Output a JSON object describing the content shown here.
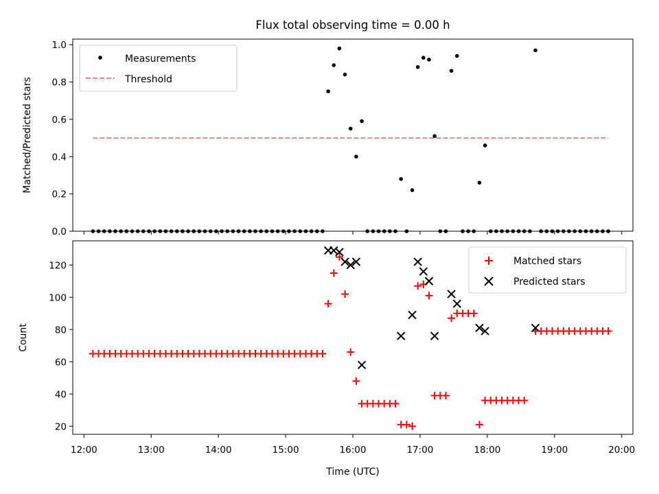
{
  "chart_data": [
    {
      "type": "scatter",
      "title": "Flux total observing time = 0.00 h",
      "xlabel": "",
      "ylabel": "Matched/Predicted stars",
      "ylim": [
        0,
        1.03
      ],
      "yticks": [
        "0.0",
        "0.2",
        "0.4",
        "0.6",
        "0.8",
        "1.0"
      ],
      "legend_position": "top-left",
      "series": [
        {
          "name": "Measurements",
          "marker": "dot",
          "color": "#000000",
          "points": [
            [
              "12:08",
              0
            ],
            [
              "12:13",
              0
            ],
            [
              "12:18",
              0
            ],
            [
              "12:23",
              0
            ],
            [
              "12:28",
              0
            ],
            [
              "12:33",
              0
            ],
            [
              "12:38",
              0
            ],
            [
              "12:43",
              0
            ],
            [
              "12:48",
              0
            ],
            [
              "12:53",
              0
            ],
            [
              "12:58",
              0
            ],
            [
              "13:03",
              0
            ],
            [
              "13:08",
              0
            ],
            [
              "13:13",
              0
            ],
            [
              "13:18",
              0
            ],
            [
              "13:23",
              0
            ],
            [
              "13:28",
              0
            ],
            [
              "13:33",
              0
            ],
            [
              "13:38",
              0
            ],
            [
              "13:43",
              0
            ],
            [
              "13:48",
              0
            ],
            [
              "13:53",
              0
            ],
            [
              "13:58",
              0
            ],
            [
              "14:03",
              0
            ],
            [
              "14:08",
              0
            ],
            [
              "14:13",
              0
            ],
            [
              "14:18",
              0
            ],
            [
              "14:23",
              0
            ],
            [
              "14:28",
              0
            ],
            [
              "14:33",
              0
            ],
            [
              "14:38",
              0
            ],
            [
              "14:43",
              0
            ],
            [
              "14:48",
              0
            ],
            [
              "14:53",
              0
            ],
            [
              "14:58",
              0
            ],
            [
              "15:03",
              0
            ],
            [
              "15:08",
              0
            ],
            [
              "15:13",
              0
            ],
            [
              "15:18",
              0
            ],
            [
              "15:23",
              0
            ],
            [
              "15:28",
              0
            ],
            [
              "15:33",
              0
            ],
            [
              "15:38",
              0.75
            ],
            [
              "15:43",
              0.89
            ],
            [
              "15:48",
              0.98
            ],
            [
              "15:53",
              0.84
            ],
            [
              "15:58",
              0.55
            ],
            [
              "16:03",
              0.4
            ],
            [
              "16:08",
              0.59
            ],
            [
              "16:13",
              0
            ],
            [
              "16:18",
              0
            ],
            [
              "16:23",
              0
            ],
            [
              "16:28",
              0
            ],
            [
              "16:33",
              0
            ],
            [
              "16:38",
              0
            ],
            [
              "16:43",
              0.28
            ],
            [
              "16:48",
              0
            ],
            [
              "16:53",
              0.22
            ],
            [
              "16:58",
              0.88
            ],
            [
              "17:03",
              0.93
            ],
            [
              "17:08",
              0.92
            ],
            [
              "17:13",
              0.51
            ],
            [
              "17:18",
              0
            ],
            [
              "17:23",
              0
            ],
            [
              "17:28",
              0.86
            ],
            [
              "17:33",
              0.94
            ],
            [
              "17:38",
              0
            ],
            [
              "17:43",
              0
            ],
            [
              "17:48",
              0
            ],
            [
              "17:53",
              0.26
            ],
            [
              "17:58",
              0.46
            ],
            [
              "18:03",
              0
            ],
            [
              "18:08",
              0
            ],
            [
              "18:13",
              0
            ],
            [
              "18:18",
              0
            ],
            [
              "18:23",
              0
            ],
            [
              "18:28",
              0
            ],
            [
              "18:33",
              0
            ],
            [
              "18:38",
              0
            ],
            [
              "18:43",
              0.97
            ],
            [
              "18:48",
              0
            ],
            [
              "18:53",
              0
            ],
            [
              "18:58",
              0
            ],
            [
              "19:03",
              0
            ],
            [
              "19:08",
              0
            ],
            [
              "19:13",
              0
            ],
            [
              "19:18",
              0
            ],
            [
              "19:23",
              0
            ],
            [
              "19:28",
              0
            ],
            [
              "19:33",
              0
            ],
            [
              "19:38",
              0
            ],
            [
              "19:43",
              0
            ],
            [
              "19:48",
              0
            ]
          ]
        },
        {
          "name": "Threshold",
          "line": "dashed",
          "color": "#ff7f7f",
          "points": [
            [
              "12:08",
              0.5
            ],
            [
              "19:48",
              0.5
            ]
          ]
        }
      ]
    },
    {
      "type": "scatter",
      "title": "",
      "xlabel": "Time (UTC)",
      "ylabel": "Count",
      "ylim": [
        15,
        135
      ],
      "yticks": [
        "20",
        "40",
        "60",
        "80",
        "100",
        "120"
      ],
      "xlim": [
        "11:50",
        "20:10"
      ],
      "xticks": [
        "12:00",
        "13:00",
        "14:00",
        "15:00",
        "16:00",
        "17:00",
        "18:00",
        "19:00",
        "20:00"
      ],
      "legend_position": "top-right",
      "series": [
        {
          "name": "Matched stars",
          "marker": "plus",
          "color": "#ff0000",
          "points": [
            [
              "12:08",
              65
            ],
            [
              "12:13",
              65
            ],
            [
              "12:18",
              65
            ],
            [
              "12:23",
              65
            ],
            [
              "12:28",
              65
            ],
            [
              "12:33",
              65
            ],
            [
              "12:38",
              65
            ],
            [
              "12:43",
              65
            ],
            [
              "12:48",
              65
            ],
            [
              "12:53",
              65
            ],
            [
              "12:58",
              65
            ],
            [
              "13:03",
              65
            ],
            [
              "13:08",
              65
            ],
            [
              "13:13",
              65
            ],
            [
              "13:18",
              65
            ],
            [
              "13:23",
              65
            ],
            [
              "13:28",
              65
            ],
            [
              "13:33",
              65
            ],
            [
              "13:38",
              65
            ],
            [
              "13:43",
              65
            ],
            [
              "13:48",
              65
            ],
            [
              "13:53",
              65
            ],
            [
              "13:58",
              65
            ],
            [
              "14:03",
              65
            ],
            [
              "14:08",
              65
            ],
            [
              "14:13",
              65
            ],
            [
              "14:18",
              65
            ],
            [
              "14:23",
              65
            ],
            [
              "14:28",
              65
            ],
            [
              "14:33",
              65
            ],
            [
              "14:38",
              65
            ],
            [
              "14:43",
              65
            ],
            [
              "14:48",
              65
            ],
            [
              "14:53",
              65
            ],
            [
              "14:58",
              65
            ],
            [
              "15:03",
              65
            ],
            [
              "15:08",
              65
            ],
            [
              "15:13",
              65
            ],
            [
              "15:18",
              65
            ],
            [
              "15:23",
              65
            ],
            [
              "15:28",
              65
            ],
            [
              "15:33",
              65
            ],
            [
              "15:38",
              96
            ],
            [
              "15:43",
              115
            ],
            [
              "15:48",
              125
            ],
            [
              "15:53",
              102
            ],
            [
              "15:58",
              66
            ],
            [
              "16:03",
              48
            ],
            [
              "16:08",
              34
            ],
            [
              "16:13",
              34
            ],
            [
              "16:18",
              34
            ],
            [
              "16:23",
              34
            ],
            [
              "16:28",
              34
            ],
            [
              "16:33",
              34
            ],
            [
              "16:38",
              34
            ],
            [
              "16:43",
              21
            ],
            [
              "16:48",
              21
            ],
            [
              "16:53",
              20
            ],
            [
              "16:58",
              107
            ],
            [
              "17:03",
              108
            ],
            [
              "17:08",
              101
            ],
            [
              "17:13",
              39
            ],
            [
              "17:18",
              39
            ],
            [
              "17:23",
              39
            ],
            [
              "17:28",
              87
            ],
            [
              "17:33",
              90
            ],
            [
              "17:38",
              90
            ],
            [
              "17:43",
              90
            ],
            [
              "17:48",
              90
            ],
            [
              "17:53",
              21
            ],
            [
              "17:58",
              36
            ],
            [
              "18:03",
              36
            ],
            [
              "18:08",
              36
            ],
            [
              "18:13",
              36
            ],
            [
              "18:18",
              36
            ],
            [
              "18:23",
              36
            ],
            [
              "18:28",
              36
            ],
            [
              "18:33",
              36
            ],
            [
              "18:43",
              79
            ],
            [
              "18:48",
              79
            ],
            [
              "18:53",
              79
            ],
            [
              "18:58",
              79
            ],
            [
              "19:03",
              79
            ],
            [
              "19:08",
              79
            ],
            [
              "19:13",
              79
            ],
            [
              "19:18",
              79
            ],
            [
              "19:23",
              79
            ],
            [
              "19:28",
              79
            ],
            [
              "19:33",
              79
            ],
            [
              "19:38",
              79
            ],
            [
              "19:43",
              79
            ],
            [
              "19:48",
              79
            ]
          ]
        },
        {
          "name": "Predicted stars",
          "marker": "x",
          "color": "#000000",
          "points": [
            [
              "15:38",
              129
            ],
            [
              "15:43",
              129
            ],
            [
              "15:48",
              128
            ],
            [
              "15:53",
              122
            ],
            [
              "15:58",
              120
            ],
            [
              "16:03",
              122
            ],
            [
              "16:08",
              58
            ],
            [
              "16:43",
              76
            ],
            [
              "16:53",
              89
            ],
            [
              "16:58",
              122
            ],
            [
              "17:03",
              116
            ],
            [
              "17:08",
              110
            ],
            [
              "17:13",
              76
            ],
            [
              "17:28",
              102
            ],
            [
              "17:33",
              96
            ],
            [
              "17:53",
              81
            ],
            [
              "17:58",
              79
            ],
            [
              "18:43",
              81
            ]
          ]
        }
      ]
    }
  ],
  "legend_marker_styles": {
    "measurements": "dot",
    "threshold": "dashed",
    "matched": "plus",
    "predicted": "x"
  }
}
